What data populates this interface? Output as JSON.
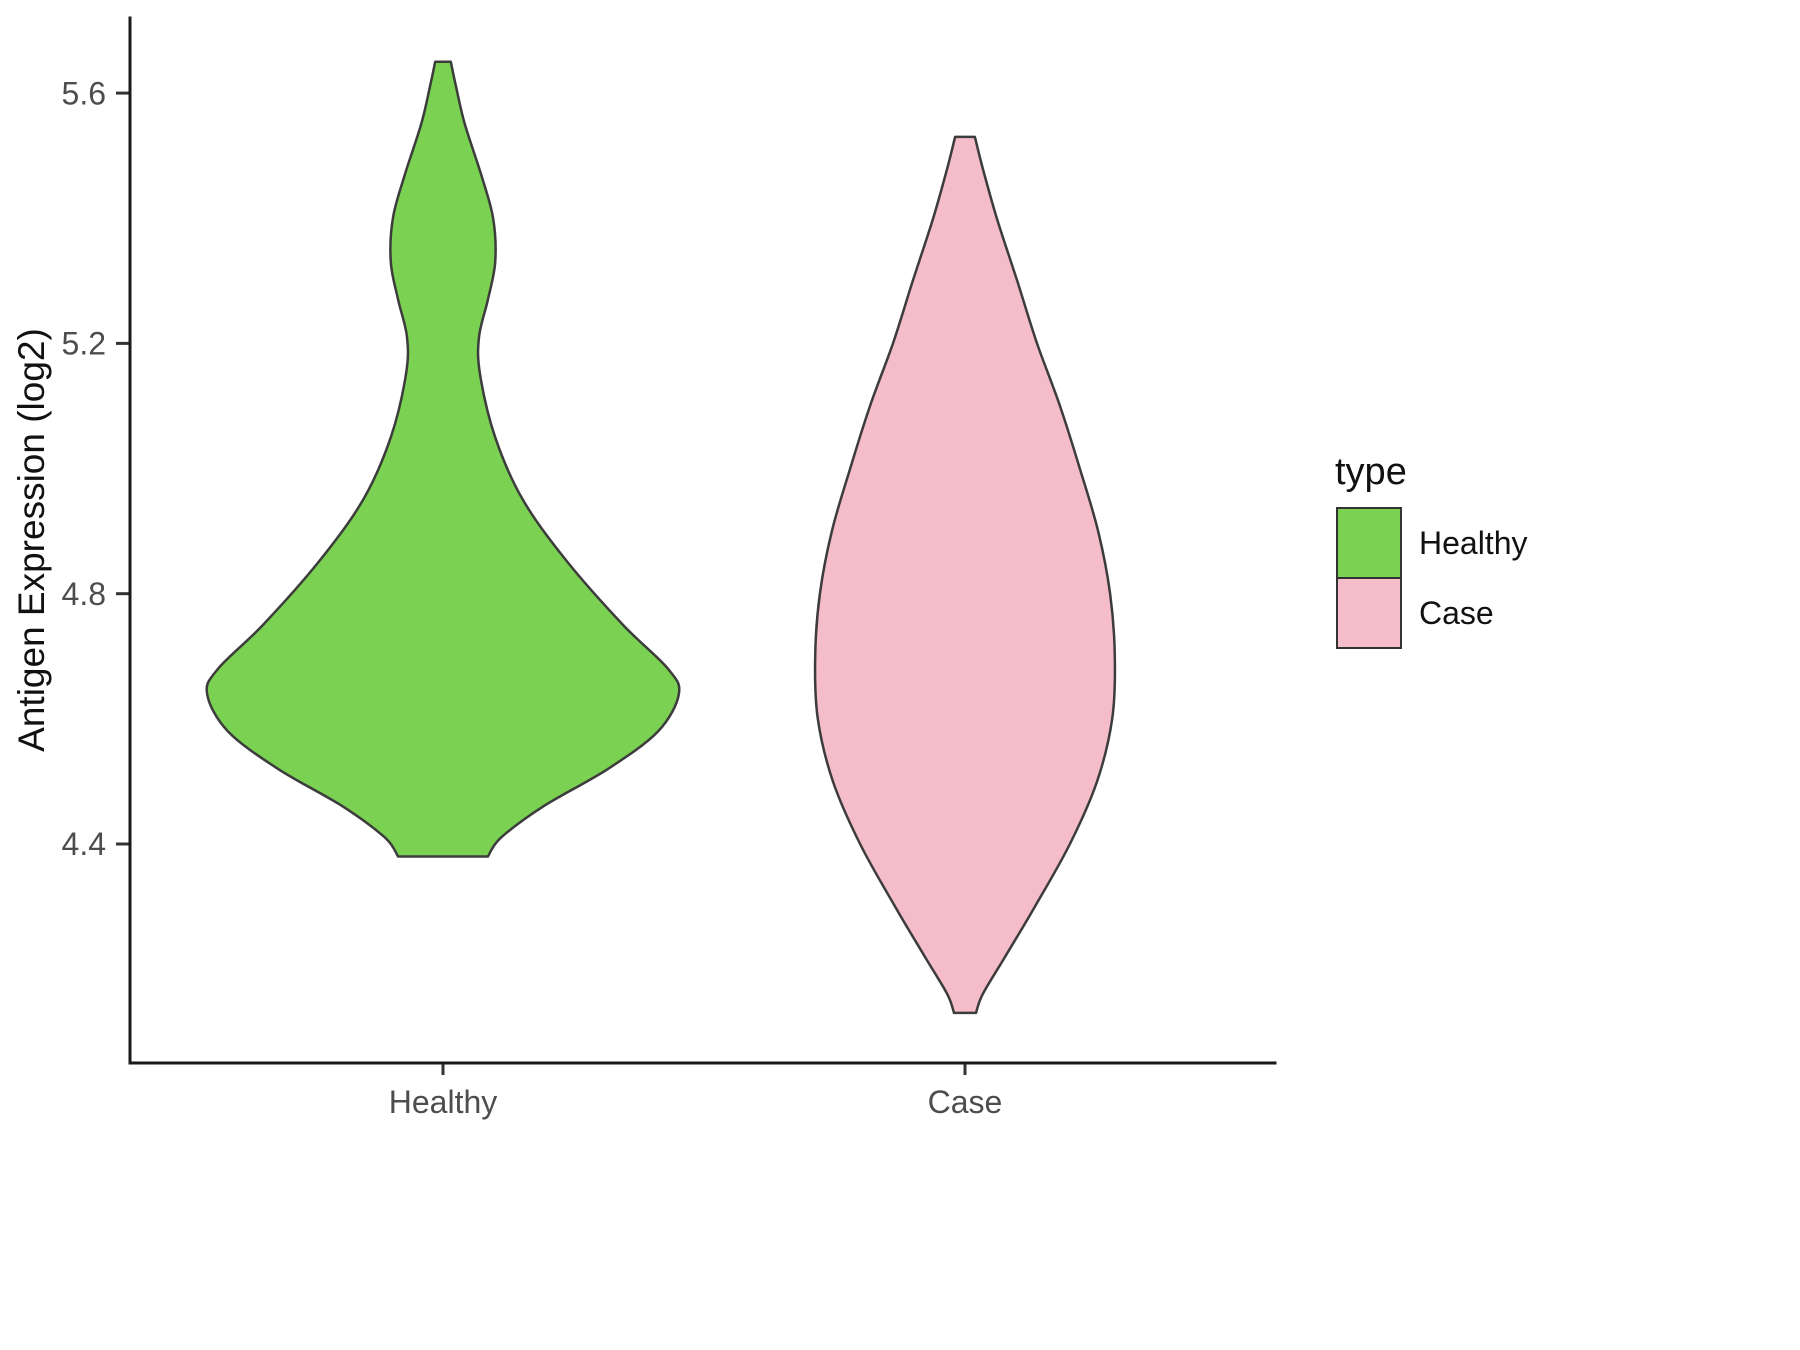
{
  "chart_data": {
    "type": "violin",
    "title": "",
    "xlabel": "",
    "ylabel": "Antigen Expression (log2)",
    "categories": [
      "Healthy",
      "Case"
    ],
    "y_ticks": [
      "4.4",
      "4.8",
      "5.2",
      "5.6"
    ],
    "y_tick_values": [
      4.4,
      4.8,
      5.2,
      5.6
    ],
    "ylim": [
      4.05,
      5.72
    ],
    "grid": "off",
    "legend": {
      "title": "type",
      "position": "right",
      "items": [
        {
          "label": "Healthy",
          "color": "#7bd151"
        },
        {
          "label": "Case",
          "color": "#f5bcc9"
        }
      ]
    },
    "series": [
      {
        "name": "Healthy",
        "x": 1,
        "color": "#7bd151",
        "stroke": "#3c3c3c",
        "y_range": [
          4.38,
          5.65
        ],
        "profile": [
          [
            5.65,
            0.015
          ],
          [
            5.61,
            0.025
          ],
          [
            5.55,
            0.042
          ],
          [
            5.47,
            0.073
          ],
          [
            5.4,
            0.096
          ],
          [
            5.33,
            0.1
          ],
          [
            5.27,
            0.086
          ],
          [
            5.21,
            0.069
          ],
          [
            5.15,
            0.071
          ],
          [
            5.05,
            0.1
          ],
          [
            4.95,
            0.153
          ],
          [
            4.85,
            0.239
          ],
          [
            4.75,
            0.345
          ],
          [
            4.68,
            0.431
          ],
          [
            4.64,
            0.452
          ],
          [
            4.58,
            0.412
          ],
          [
            4.52,
            0.316
          ],
          [
            4.46,
            0.192
          ],
          [
            4.41,
            0.111
          ],
          [
            4.38,
            0.086
          ]
        ]
      },
      {
        "name": "Case",
        "x": 2,
        "color": "#f5bcc9",
        "stroke": "#3c3c3c",
        "y_range": [
          4.13,
          5.53
        ],
        "profile": [
          [
            5.53,
            0.019
          ],
          [
            5.48,
            0.034
          ],
          [
            5.4,
            0.061
          ],
          [
            5.3,
            0.1
          ],
          [
            5.2,
            0.138
          ],
          [
            5.1,
            0.182
          ],
          [
            5.0,
            0.22
          ],
          [
            4.9,
            0.255
          ],
          [
            4.8,
            0.278
          ],
          [
            4.7,
            0.287
          ],
          [
            4.6,
            0.282
          ],
          [
            4.5,
            0.253
          ],
          [
            4.4,
            0.201
          ],
          [
            4.3,
            0.134
          ],
          [
            4.22,
            0.077
          ],
          [
            4.16,
            0.034
          ],
          [
            4.13,
            0.021
          ]
        ]
      }
    ]
  },
  "colors": {
    "background": "#ffffff",
    "axis": "#1a1a1a",
    "tick_text": "#4d4d4d",
    "violin_stroke": "#3c3c3c"
  }
}
